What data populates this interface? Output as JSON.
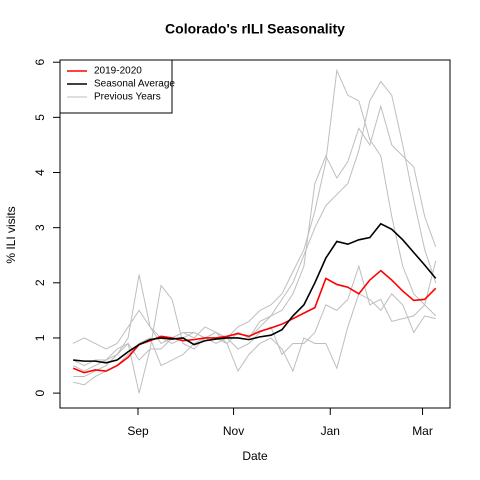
{
  "chart_data": {
    "type": "line",
    "title": "Colorado's rILI Seasonality",
    "x_label": "Date",
    "y_label": "% ILI visits",
    "x": [
      0,
      1,
      2,
      3,
      4,
      5,
      6,
      7,
      8,
      9,
      10,
      11,
      12,
      13,
      14,
      15,
      16,
      17,
      18,
      19,
      20,
      21,
      22,
      23,
      24,
      25,
      26,
      27,
      28,
      29,
      30,
      31,
      32,
      33
    ],
    "xlim": [
      -1.2,
      34.3
    ],
    "xticks": [
      {
        "value": 5.9,
        "label": "Sep"
      },
      {
        "value": 14.6,
        "label": "Nov"
      },
      {
        "value": 23.4,
        "label": "Jan"
      },
      {
        "value": 31.8,
        "label": "Mar"
      }
    ],
    "ylim": [
      -0.27,
      6.04
    ],
    "yticks": [
      0,
      1,
      2,
      3,
      4,
      5,
      6
    ],
    "legend": "top-left",
    "previous_years": {
      "name": "Previous Years",
      "color": "#bebebe",
      "lines": [
        [
          0.9,
          1.0,
          0.9,
          0.8,
          0.9,
          1.2,
          1.5,
          1.2,
          0.9,
          1.0,
          1.1,
          1.1,
          1.0,
          1.1,
          1.0,
          1.2,
          1.3,
          1.5,
          1.6,
          1.8,
          2.2,
          2.6,
          3.3,
          4.2,
          5.85,
          5.4,
          5.3,
          4.6,
          4.3,
          3.2,
          2.3,
          1.8,
          1.6,
          1.4
        ],
        [
          0.5,
          0.4,
          0.5,
          0.6,
          0.7,
          1.0,
          2.15,
          1.2,
          1.0,
          0.9,
          1.0,
          1.1,
          1.0,
          0.9,
          1.0,
          1.1,
          1.0,
          1.2,
          1.4,
          1.7,
          2.0,
          2.5,
          3.0,
          3.4,
          3.6,
          3.8,
          4.4,
          5.3,
          5.65,
          5.4,
          4.5,
          3.5,
          2.6,
          2.0
        ],
        [
          0.3,
          0.3,
          0.4,
          0.5,
          0.7,
          0.9,
          0.6,
          0.8,
          1.95,
          1.7,
          0.9,
          0.8,
          1.0,
          1.0,
          0.9,
          1.1,
          1.0,
          1.3,
          1.4,
          1.5,
          1.8,
          2.3,
          3.8,
          4.3,
          3.9,
          4.2,
          4.8,
          4.5,
          5.2,
          4.5,
          4.3,
          4.1,
          3.2,
          2.65
        ],
        [
          0.6,
          0.5,
          0.6,
          0.6,
          0.8,
          0.9,
          0.0,
          0.8,
          0.8,
          1.0,
          1.1,
          1.0,
          1.2,
          1.1,
          0.9,
          0.4,
          0.7,
          0.9,
          1.0,
          0.8,
          0.4,
          1.0,
          0.9,
          0.9,
          0.45,
          1.2,
          1.8,
          1.7,
          1.5,
          1.8,
          1.6,
          1.1,
          1.4,
          1.35
        ],
        [
          0.2,
          0.15,
          0.3,
          0.4,
          0.5,
          0.7,
          0.9,
          1.0,
          0.5,
          0.6,
          0.7,
          0.9,
          1.0,
          1.1,
          1.0,
          0.8,
          0.9,
          1.1,
          1.2,
          0.7,
          0.9,
          0.9,
          1.1,
          1.6,
          1.5,
          1.7,
          2.3,
          1.6,
          1.7,
          1.3,
          1.35,
          1.4,
          1.6,
          2.4
        ]
      ]
    },
    "series": [
      {
        "name": "2019-2020",
        "color": "#ff0000",
        "values": [
          0.45,
          0.37,
          0.42,
          0.4,
          0.5,
          0.65,
          0.88,
          0.95,
          1.03,
          1.0,
          0.95,
          0.97,
          1.0,
          1.0,
          1.03,
          1.08,
          1.03,
          1.12,
          1.18,
          1.25,
          1.35,
          1.45,
          1.55,
          2.08,
          1.97,
          1.92,
          1.8,
          2.05,
          2.22,
          2.05,
          1.85,
          1.68,
          1.7,
          1.9
        ]
      },
      {
        "name": "Seasonal Average",
        "color": "#000000",
        "values": [
          0.6,
          0.58,
          0.58,
          0.55,
          0.6,
          0.75,
          0.88,
          0.97,
          1.0,
          0.98,
          1.0,
          0.88,
          0.95,
          0.98,
          1.0,
          1.0,
          0.97,
          1.02,
          1.05,
          1.15,
          1.4,
          1.6,
          2.0,
          2.45,
          2.75,
          2.7,
          2.78,
          2.82,
          3.07,
          2.97,
          2.78,
          2.55,
          2.32,
          2.08
        ]
      }
    ]
  }
}
